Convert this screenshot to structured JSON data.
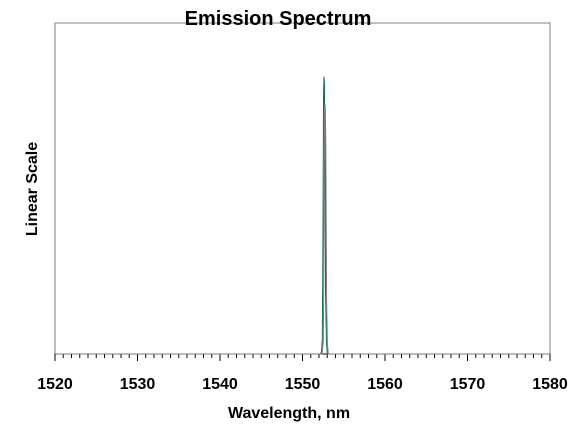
{
  "chart_data": {
    "type": "line",
    "title": "Emission Spectrum",
    "xlabel": "Wavelength, nm",
    "ylabel": "Linear Scale",
    "xlim": [
      1520,
      1580
    ],
    "ylim": [
      0,
      1
    ],
    "x_ticks": [
      1520,
      1530,
      1540,
      1550,
      1560,
      1570,
      1580
    ],
    "x_tick_labels": [
      "1520",
      "1530",
      "1540",
      "1550",
      "1560",
      "1570",
      "1580"
    ],
    "x_minor_step": 1,
    "grid": false,
    "legend": "none",
    "series": [
      {
        "color": "#0a6e5a",
        "x": [
          1520,
          1552.2,
          1552.3,
          1552.4,
          1552.45,
          1552.5,
          1552.55,
          1552.6,
          1552.65,
          1552.7,
          1552.75,
          1552.8,
          1552.9,
          1553.0,
          1580
        ],
        "y": [
          0,
          0,
          0.01,
          0.05,
          0.25,
          0.55,
          0.88,
          0.95,
          0.93,
          0.8,
          0.5,
          0.2,
          0.04,
          0,
          0
        ]
      }
    ],
    "colors": {
      "line": "#0a6e5a",
      "axis": "#000000",
      "frame": "#808080"
    }
  }
}
